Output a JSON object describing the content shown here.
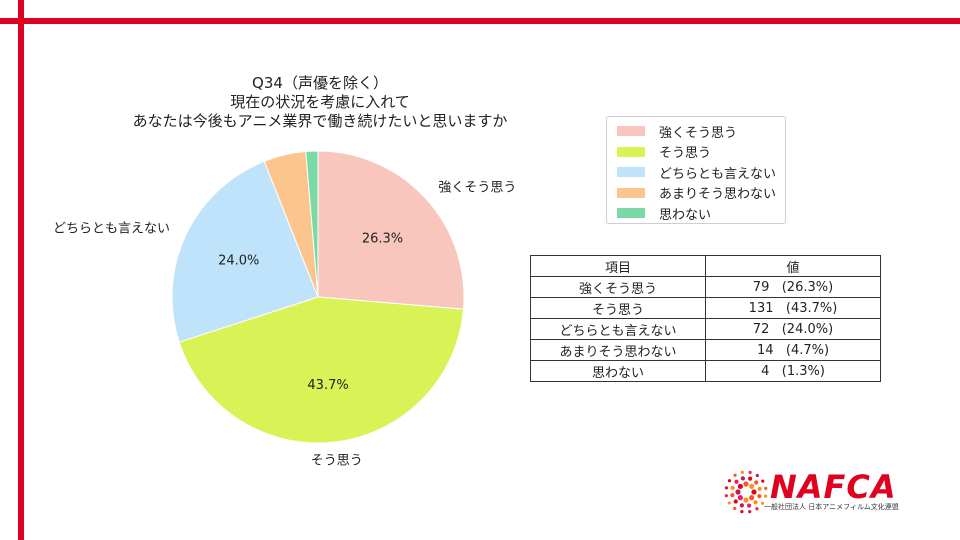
{
  "title_lines": [
    "Q34（声優を除く）",
    "現在の状況を考慮に入れて",
    "あなたは今後もアニメ業界で働き続けたいと思いますか"
  ],
  "chart_data": {
    "type": "pie",
    "categories": [
      "強くそう思う",
      "そう思う",
      "どちらとも言えない",
      "あまりそう思わない",
      "思わない"
    ],
    "values": [
      79,
      131,
      72,
      14,
      4
    ],
    "percent_labels": [
      "26.3%",
      "43.7%",
      "24.0%",
      "",
      ""
    ],
    "outer_labels": [
      "強くそう思う",
      "そう思う",
      "どちらとも言えない",
      "",
      ""
    ],
    "colors": [
      "#f9c6bd",
      "#d9f256",
      "#bfe3fb",
      "#fcc58e",
      "#7ad9a4"
    ],
    "start_angle": "12 o'clock",
    "direction": "clockwise",
    "legend_position": "top-right"
  },
  "table": {
    "headers": [
      "項目",
      "値"
    ],
    "rows": [
      [
        "強くそう思う",
        "79   (26.3%)"
      ],
      [
        "そう思う",
        "131   (43.7%)"
      ],
      [
        "どちらとも言えない",
        "72   (24.0%)"
      ],
      [
        "あまりそう思わない",
        "14   (4.7%)"
      ],
      [
        "思わない",
        "4   (1.3%)"
      ]
    ]
  },
  "logo": {
    "word": "NAFCA",
    "subtitle": "一般社団法人 日本アニメフィルム文化連盟",
    "color": "#e0001f"
  },
  "frame_color": "#e0001f"
}
